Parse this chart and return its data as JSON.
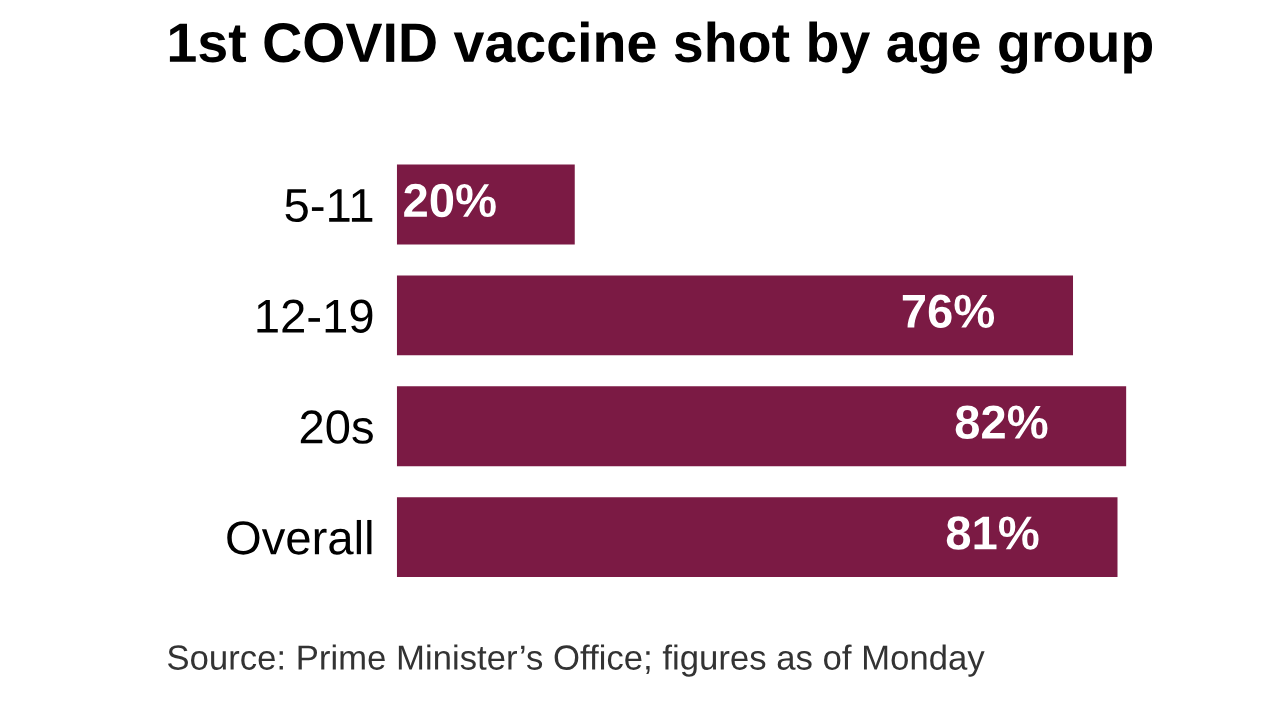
{
  "chart_data": {
    "type": "bar",
    "orientation": "horizontal",
    "title": "1st COVID vaccine shot by age group",
    "categories": [
      "5-11",
      "12-19",
      "20s",
      "Overall"
    ],
    "values": [
      20,
      76,
      82,
      81
    ],
    "color": "#7b1a44",
    "data_labels": true,
    "value_labels": [
      "20%",
      "76%",
      "82%",
      "81%"
    ],
    "annotations": [
      "Source: Prime Minister’s Office; figures as of Monday"
    ]
  }
}
